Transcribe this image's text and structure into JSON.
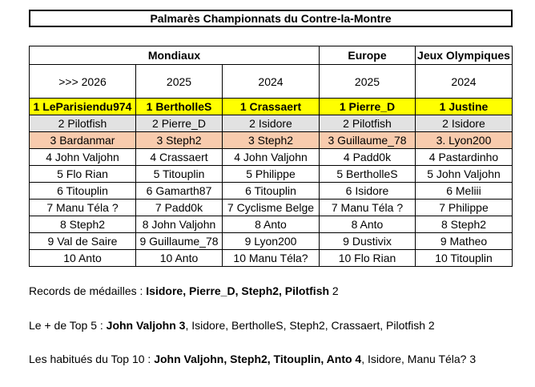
{
  "title": "Palmarès Championnats du Contre-la-Montre",
  "groups": [
    "Mondiaux",
    "Europe",
    "Jeux Olympiques"
  ],
  "years": [
    ">>> 2026",
    "2025",
    "2024",
    "2025",
    "2024"
  ],
  "columns": [
    [
      "1 LeParisiendu974",
      "2 Pilotfish",
      "3 Bardanmar",
      "4 John Valjohn",
      "5 Flo Rian",
      "6 Titouplin",
      "7 Manu Téla ?",
      "8 Steph2",
      "9 Val de Saire",
      "10 Anto"
    ],
    [
      "1 BertholleS",
      "2 Pierre_D",
      "3 Steph2",
      "4 Crassaert",
      "5 Titouplin",
      "6 Gamarth87",
      "7 Padd0k",
      "8 John Valjohn",
      "9 Guillaume_78",
      "10 Anto"
    ],
    [
      "1 Crassaert",
      "2 Isidore",
      "3 Steph2",
      "4 John Valjohn",
      "5 Philippe",
      "6 Titouplin",
      "7 Cyclisme Belge",
      "8 Anto",
      "9 Lyon200",
      "10 Manu Téla?"
    ],
    [
      "1 Pierre_D",
      "2 Pilotfish",
      "3 Guillaume_78",
      "4 Padd0k",
      "5 BertholleS",
      "6 Isidore",
      "7 Manu Téla ?",
      "8 Anto",
      "9 Dustivix",
      "10 Flo Rian"
    ],
    [
      "1 Justine",
      "2 Isidore",
      "3. Lyon200",
      "4 Pastardinho",
      "5 John Valjohn",
      "6 Meliii",
      "7 Philippe",
      "8 Steph2",
      "9 Matheo",
      "10 Titouplin"
    ]
  ],
  "notes": {
    "medals_label": "Records de médailles : ",
    "medals_bold": "Isidore, Pierre_D, Steph2, Pilotfish",
    "medals_rest": " 2",
    "top5_label": "Le + de Top 5 : ",
    "top5_bold": "John Valjohn 3",
    "top5_rest": ", Isidore, BertholleS, Steph2, Crassaert, Pilotfish 2",
    "top10_label": "Les habitués du Top 10 : ",
    "top10_bold": "John Valjohn, Steph2, Titouplin, Anto 4",
    "top10_rest": ", Isidore, Manu Téla? 3"
  },
  "colors": {
    "gold": "#ffff00",
    "silver": "#e2e2e2",
    "bronze": "#f8cbad"
  }
}
